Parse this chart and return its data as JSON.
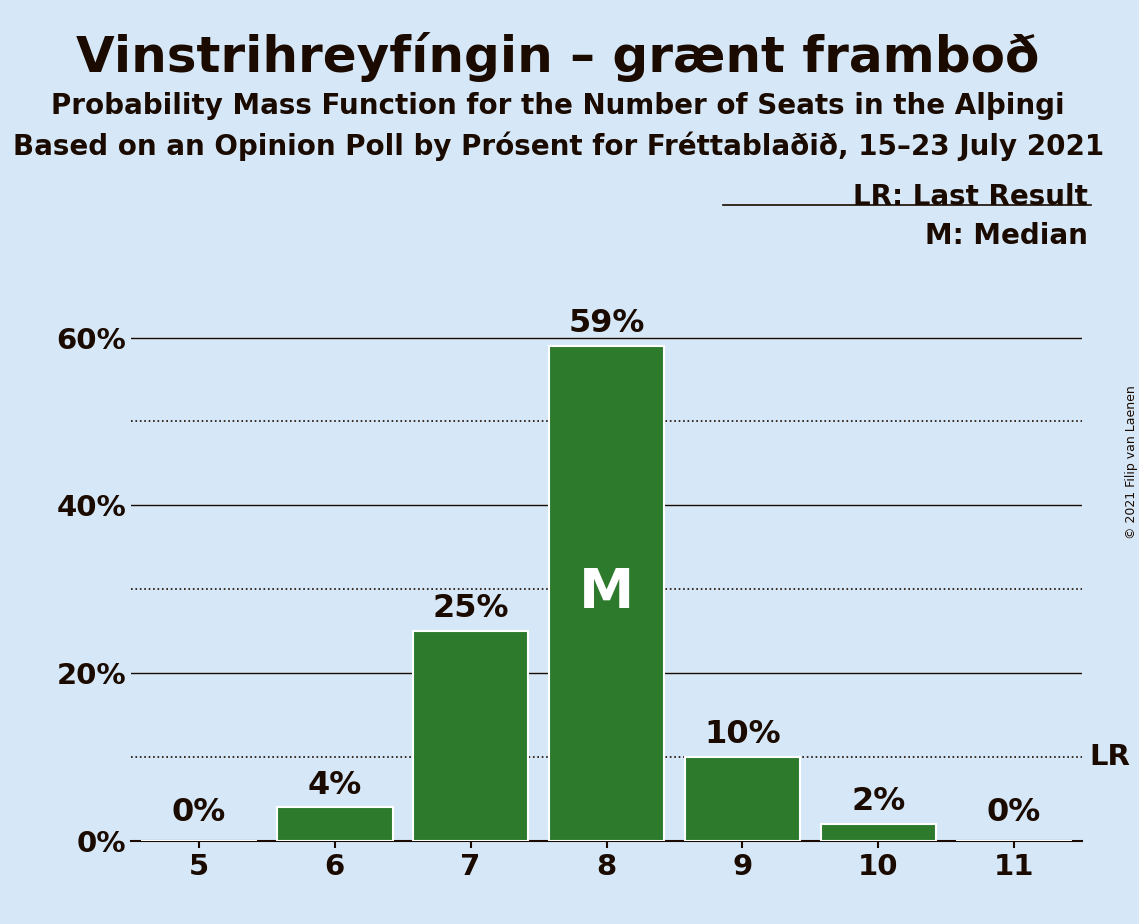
{
  "title": "Vinstrihreyfíngin – grænt framboð",
  "subtitle1": "Probability Mass Function for the Number of Seats in the Alþingi",
  "subtitle2": "Based on an Opinion Poll by Prósent for Fréttablaðið, 15–23 July 2021",
  "copyright": "© 2021 Filip van Laenen",
  "seats": [
    5,
    6,
    7,
    8,
    9,
    10,
    11
  ],
  "probabilities": [
    0.0,
    4.0,
    25.0,
    59.0,
    10.0,
    2.0,
    0.0
  ],
  "bar_color": "#2d7a2d",
  "background_color": "#d6e8f7",
  "median_seat": 8,
  "median_label": "M",
  "last_result_label": "LR",
  "lr_y": 10.0,
  "yticks_solid": [
    0,
    20,
    40,
    60
  ],
  "yticks_dotted": [
    10,
    30,
    50
  ],
  "ytick_labels": [
    0,
    20,
    40,
    60
  ],
  "ylim": [
    0,
    65
  ],
  "xlim": [
    4.5,
    11.5
  ],
  "bar_width": 0.85,
  "title_fontsize": 36,
  "subtitle1_fontsize": 20,
  "subtitle2_fontsize": 20,
  "bar_label_fontsize": 23,
  "axis_tick_fontsize": 21,
  "legend_fontsize": 20,
  "median_fontsize": 40,
  "lr_annotation_fontsize": 21,
  "copyright_fontsize": 9,
  "text_color": "#1a0a00"
}
